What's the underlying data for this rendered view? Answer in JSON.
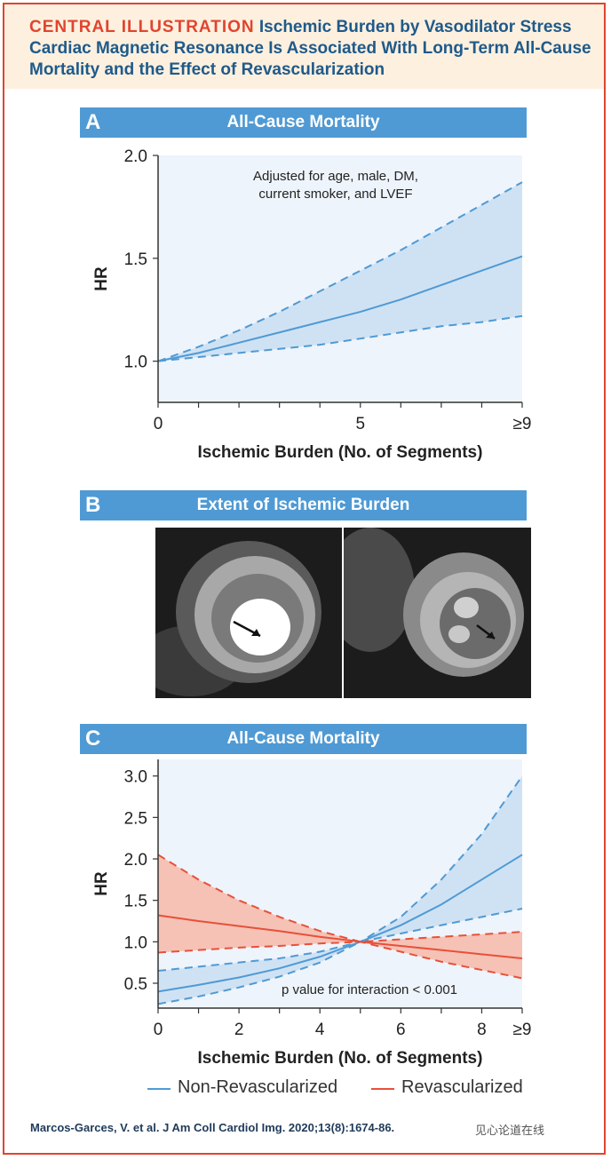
{
  "header": {
    "tag": "CENTRAL ILLUSTRATION",
    "title": "Ischemic Burden by Vasodilator Stress Cardiac Magnetic Resonance Is Associated With Long-Term All-Cause Mortality and the Effect of Revascularization"
  },
  "panels": {
    "a": {
      "letter": "A",
      "title": "All-Cause Mortality"
    },
    "b": {
      "letter": "B",
      "title": "Extent of Ischemic Burden"
    },
    "c": {
      "letter": "C",
      "title": "All-Cause Mortality"
    }
  },
  "chart_data": [
    {
      "type": "line",
      "title": "All-Cause Mortality",
      "xlabel": "Ischemic Burden (No. of Segments)",
      "ylabel": "HR",
      "xlim": [
        0,
        9
      ],
      "ylim": [
        0.8,
        2.0
      ],
      "xticks": [
        0,
        1,
        2,
        3,
        4,
        5,
        6,
        7,
        8,
        9
      ],
      "xtick_labels": [
        "0",
        "5",
        "≥9"
      ],
      "xtick_label_positions": [
        0,
        5,
        9
      ],
      "yticks": [
        1.0,
        1.5,
        2.0
      ],
      "ytick_labels": [
        "1.0",
        "1.5",
        "2.0"
      ],
      "annotation": "Adjusted for age, male, DM, current smoker, and LVEF",
      "x": [
        0,
        1,
        2,
        3,
        4,
        5,
        6,
        7,
        8,
        9
      ],
      "series": [
        {
          "role": "estimate",
          "style": "solid",
          "color": "#4f9ad4",
          "values": [
            1.0,
            1.04,
            1.09,
            1.14,
            1.19,
            1.24,
            1.3,
            1.37,
            1.44,
            1.51
          ]
        },
        {
          "role": "upper",
          "style": "dashed",
          "color": "#4f9ad4",
          "values": [
            1.0,
            1.07,
            1.15,
            1.24,
            1.34,
            1.44,
            1.54,
            1.65,
            1.76,
            1.87
          ]
        },
        {
          "role": "lower",
          "style": "dashed",
          "color": "#4f9ad4",
          "values": [
            1.0,
            1.02,
            1.04,
            1.06,
            1.08,
            1.11,
            1.14,
            1.17,
            1.19,
            1.22
          ]
        }
      ],
      "band_color": "#c9def2",
      "grid": false
    },
    {
      "type": "line",
      "title": "All-Cause Mortality",
      "xlabel": "Ischemic Burden (No. of Segments)",
      "ylabel": "HR",
      "xlim": [
        0,
        9
      ],
      "ylim": [
        0.2,
        3.2
      ],
      "xticks": [
        0,
        1,
        2,
        3,
        4,
        5,
        6,
        7,
        8,
        9
      ],
      "xtick_labels": [
        "0",
        "2",
        "4",
        "6",
        "8",
        "≥9"
      ],
      "xtick_label_positions": [
        0,
        2,
        4,
        6,
        8,
        9
      ],
      "yticks": [
        0.5,
        1.0,
        1.5,
        2.0,
        2.5,
        3.0
      ],
      "ytick_labels": [
        "0.5",
        "1.0",
        "1.5",
        "2.0",
        "2.5",
        "3.0"
      ],
      "annotation": "p value for interaction < 0.001",
      "x": [
        0,
        1,
        2,
        3,
        4,
        5,
        6,
        7,
        8,
        9
      ],
      "series": [
        {
          "name": "Non-Revascularized",
          "role": "estimate",
          "style": "solid",
          "color": "#4f9ad4",
          "values": [
            0.4,
            0.48,
            0.57,
            0.68,
            0.82,
            1.0,
            1.2,
            1.45,
            1.75,
            2.05
          ]
        },
        {
          "name": "Non-Revascularized",
          "role": "upper",
          "style": "dashed",
          "color": "#4f9ad4",
          "values": [
            0.65,
            0.7,
            0.75,
            0.8,
            0.88,
            1.0,
            1.3,
            1.75,
            2.3,
            3.0
          ]
        },
        {
          "name": "Non-Revascularized",
          "role": "lower",
          "style": "dashed",
          "color": "#4f9ad4",
          "values": [
            0.25,
            0.34,
            0.45,
            0.58,
            0.75,
            1.0,
            1.1,
            1.2,
            1.3,
            1.4
          ]
        },
        {
          "name": "Revascularized",
          "role": "estimate",
          "style": "solid",
          "color": "#e8503a",
          "values": [
            1.32,
            1.25,
            1.19,
            1.13,
            1.06,
            1.0,
            0.95,
            0.9,
            0.85,
            0.8
          ]
        },
        {
          "name": "Revascularized",
          "role": "upper",
          "style": "dashed",
          "color": "#e8503a",
          "values": [
            2.05,
            1.75,
            1.5,
            1.3,
            1.13,
            1.0,
            1.03,
            1.06,
            1.09,
            1.12
          ]
        },
        {
          "name": "Revascularized",
          "role": "lower",
          "style": "dashed",
          "color": "#e8503a",
          "values": [
            0.87,
            0.9,
            0.93,
            0.95,
            0.98,
            1.0,
            0.88,
            0.76,
            0.66,
            0.56
          ]
        }
      ],
      "band_colors": {
        "Non-Revascularized": "#c9def2",
        "Revascularized": "#f6b9a8"
      },
      "grid": false,
      "legend": "bottom"
    }
  ],
  "legend": {
    "items": [
      {
        "label": "Non-Revascularized",
        "color": "#4f9ad4"
      },
      {
        "label": "Revascularized",
        "color": "#e8503a"
      }
    ]
  },
  "citation": "Marcos-Garces, V. et al. J Am Coll Cardiol Img. 2020;13(8):1674-86.",
  "watermark": "见心论道在线"
}
